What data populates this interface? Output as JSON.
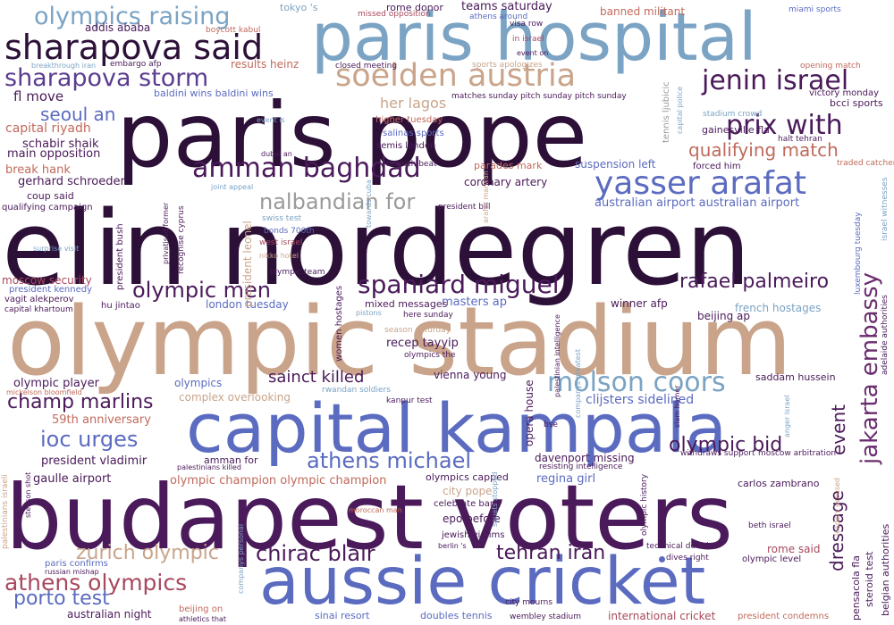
{
  "palette": {
    "dark_purple": "#2d1038",
    "deep_purple": "#4a1a5a",
    "purple": "#6a2c6e",
    "indigo": "#5b3d8f",
    "blue": "#5b6bc0",
    "light_blue": "#7ba3c4",
    "tan": "#c9a48a",
    "rose": "#a8485e",
    "brick": "#c06a5c",
    "gray": "#9a9a9a"
  },
  "words": [
    {
      "text": "elin nordegren",
      "color": "#2d1038"
    },
    {
      "text": "olympic stadium",
      "color": "#c9a48a"
    },
    {
      "text": "budapest voters",
      "color": "#4a1a5a"
    },
    {
      "text": "paris pope",
      "color": "#2d1038"
    },
    {
      "text": "paris hospital",
      "color": "#7ba3c4"
    },
    {
      "text": "capital kampala",
      "color": "#5b6bc0"
    },
    {
      "text": "aussie cricket",
      "color": "#5b6bc0"
    },
    {
      "text": "sharapova said",
      "color": "#2d1038"
    },
    {
      "text": "olympics raising",
      "color": "#7ba3c4"
    },
    {
      "text": "sharapova storm",
      "color": "#5b3d8f"
    },
    {
      "text": "soelden austria",
      "color": "#c9a48a"
    },
    {
      "text": "jenin israel",
      "color": "#4a1a5a"
    },
    {
      "text": "amman baghdad",
      "color": "#4a1a5a"
    },
    {
      "text": "yasser arafat",
      "color": "#5b6bc0"
    },
    {
      "text": "prix with",
      "color": "#4a1a5a"
    },
    {
      "text": "qualifying match",
      "color": "#c06a5c"
    },
    {
      "text": "nalbandian for",
      "color": "#9a9a9a"
    },
    {
      "text": "spaniard miguel",
      "color": "#4a1a5a"
    },
    {
      "text": "olympic men",
      "color": "#4a1a5a"
    },
    {
      "text": "rafael palmeiro",
      "color": "#4a1a5a"
    },
    {
      "text": "jakarta embassy",
      "color": "#6a2c6e"
    },
    {
      "text": "molson coors",
      "color": "#7ba3c4"
    },
    {
      "text": "sainct killed",
      "color": "#4a1a5a"
    },
    {
      "text": "champ marlins",
      "color": "#4a1a5a"
    },
    {
      "text": "ioc urges",
      "color": "#5b6bc0"
    },
    {
      "text": "athens michael",
      "color": "#5b6bc0"
    },
    {
      "text": "olympic bid",
      "color": "#4a1a5a"
    },
    {
      "text": "event",
      "color": "#4a1a5a"
    },
    {
      "text": "dressage",
      "color": "#4a1a5a"
    },
    {
      "text": "chirac blair",
      "color": "#4a1a5a"
    },
    {
      "text": "tehran iran",
      "color": "#4a1a5a"
    },
    {
      "text": "zurich olympic",
      "color": "#c9a48a"
    },
    {
      "text": "athens olympics",
      "color": "#a8485e"
    },
    {
      "text": "porto test",
      "color": "#5b6bc0"
    },
    {
      "text": "seoul an",
      "color": "#5b6bc0"
    },
    {
      "text": "her lagos",
      "color": "#c9a48a"
    },
    {
      "text": "capital riyadh",
      "color": "#c06a5c"
    },
    {
      "text": "fl move",
      "color": "#4a1a5a"
    },
    {
      "text": "main opposition",
      "color": "#4a1a5a"
    },
    {
      "text": "schabir shaik",
      "color": "#4a1a5a"
    },
    {
      "text": "break hank",
      "color": "#c06a5c"
    },
    {
      "text": "gerhard schroeder",
      "color": "#4a1a5a"
    },
    {
      "text": "coup said",
      "color": "#4a1a5a"
    },
    {
      "text": "qualifying campaign",
      "color": "#4a1a5a"
    },
    {
      "text": "moscow security",
      "color": "#a8485e"
    },
    {
      "text": "president kennedy",
      "color": "#5b6bc0"
    },
    {
      "text": "vagit alekperov",
      "color": "#4a1a5a"
    },
    {
      "text": "capital khartoum",
      "color": "#4a1a5a"
    },
    {
      "text": "hu jintao",
      "color": "#4a1a5a"
    },
    {
      "text": "london tuesday",
      "color": "#5b6bc0"
    },
    {
      "text": "masters ap",
      "color": "#5b6bc0"
    },
    {
      "text": "mixed messages",
      "color": "#4a1a5a"
    },
    {
      "text": "recep tayyip",
      "color": "#4a1a5a"
    },
    {
      "text": "olympic player",
      "color": "#4a1a5a"
    },
    {
      "text": "olympics",
      "color": "#5b6bc0"
    },
    {
      "text": "complex overlooking",
      "color": "#c9a48a"
    },
    {
      "text": "59th anniversary",
      "color": "#c06a5c"
    },
    {
      "text": "president vladimir",
      "color": "#4a1a5a"
    },
    {
      "text": "gaulle airport",
      "color": "#4a1a5a"
    },
    {
      "text": "olympic champion olympic champion",
      "color": "#c06a5c"
    },
    {
      "text": "city pope",
      "color": "#c9a48a"
    },
    {
      "text": "olympics capped",
      "color": "#4a1a5a"
    },
    {
      "text": "celebrate barry",
      "color": "#4a1a5a"
    },
    {
      "text": "epo before",
      "color": "#4a1a5a"
    },
    {
      "text": "jewish victims",
      "color": "#4a1a5a"
    },
    {
      "text": "vienna young",
      "color": "#4a1a5a"
    },
    {
      "text": "clijsters sidelined",
      "color": "#5b6bc0"
    },
    {
      "text": "davenport missing",
      "color": "#4a1a5a"
    },
    {
      "text": "regina girl",
      "color": "#5b6bc0"
    },
    {
      "text": "carlos zambrano",
      "color": "#4a1a5a"
    },
    {
      "text": "saddam hussein",
      "color": "#4a1a5a"
    },
    {
      "text": "french hostages",
      "color": "#7ba3c4"
    },
    {
      "text": "beijing ap",
      "color": "#4a1a5a"
    },
    {
      "text": "winner afp",
      "color": "#4a1a5a"
    },
    {
      "text": "australian airport australian airport",
      "color": "#5b6bc0"
    },
    {
      "text": "coronary artery",
      "color": "#4a1a5a"
    },
    {
      "text": "suspension left",
      "color": "#5b6bc0"
    },
    {
      "text": "forced him",
      "color": "#4a1a5a"
    },
    {
      "text": "gainesville fla",
      "color": "#4a1a5a"
    },
    {
      "text": "victory monday",
      "color": "#4a1a5a"
    },
    {
      "text": "bcci sports",
      "color": "#4a1a5a"
    },
    {
      "text": "tokyo 's",
      "color": "#7ba3c4"
    },
    {
      "text": "rome donor",
      "color": "#4a1a5a"
    },
    {
      "text": "teams saturday",
      "color": "#4a1a5a"
    },
    {
      "text": "banned militant",
      "color": "#c06a5c"
    },
    {
      "text": "miami sports",
      "color": "#5b6bc0"
    },
    {
      "text": "addis ababa",
      "color": "#4a1a5a"
    },
    {
      "text": "boycott kabul",
      "color": "#c06a5c"
    },
    {
      "text": "missed opposition",
      "color": "#a8485e"
    },
    {
      "text": "athens around",
      "color": "#5b6bc0"
    },
    {
      "text": "results heinz",
      "color": "#c06a5c"
    },
    {
      "text": "closed meeting",
      "color": "#4a1a5a"
    },
    {
      "text": "embargo afp",
      "color": "#4a1a5a"
    },
    {
      "text": "breakthrough iran",
      "color": "#7ba3c4"
    },
    {
      "text": "baldini wins baldini wins",
      "color": "#5b6bc0"
    },
    {
      "text": "matches sunday pitch sunday pitch sunday",
      "color": "#4a1a5a"
    },
    {
      "text": "higher tuesday",
      "color": "#c06a5c"
    },
    {
      "text": "salinas sports",
      "color": "#5b6bc0"
    },
    {
      "text": "semis london",
      "color": "#4a1a5a"
    },
    {
      "text": "parades mark",
      "color": "#c06a5c"
    },
    {
      "text": "munich beat",
      "color": "#4a1a5a"
    },
    {
      "text": "traded catcher",
      "color": "#c06a5c"
    },
    {
      "text": "halt tehran",
      "color": "#4a1a5a"
    },
    {
      "text": "stadium crowd",
      "color": "#7ba3c4"
    },
    {
      "text": "opening match",
      "color": "#c06a5c"
    },
    {
      "text": "sports apologizes",
      "color": "#c9a48a"
    },
    {
      "text": "in israel",
      "color": "#a8485e"
    },
    {
      "text": "event on",
      "color": "#4a1a5a"
    },
    {
      "text": "visa row",
      "color": "#4a1a5a"
    },
    {
      "text": "swiss test",
      "color": "#7ba3c4"
    },
    {
      "text": "west israel",
      "color": "#a8485e"
    },
    {
      "text": "nikko hotel",
      "color": "#c9a48a"
    },
    {
      "text": "bonds 700th",
      "color": "#5b6bc0"
    },
    {
      "text": "olympic team",
      "color": "#4a1a5a"
    },
    {
      "text": "president bill",
      "color": "#4a1a5a"
    },
    {
      "text": "dubai an",
      "color": "#4a1a5a"
    },
    {
      "text": "joint appeal",
      "color": "#7ba3c4"
    },
    {
      "text": "event is",
      "color": "#7ba3c4"
    },
    {
      "text": "surprise visit",
      "color": "#7ba3c4"
    },
    {
      "text": "here sunday",
      "color": "#4a1a5a"
    },
    {
      "text": "pistons",
      "color": "#7ba3c4"
    },
    {
      "text": "olympics the",
      "color": "#4a1a5a"
    },
    {
      "text": "season saturday",
      "color": "#c9a48a"
    },
    {
      "text": "mickelson bloomfield",
      "color": "#c06a5c"
    },
    {
      "text": "rwandan soldiers",
      "color": "#7ba3c4"
    },
    {
      "text": "kanpur test",
      "color": "#4a1a5a"
    },
    {
      "text": "amman for",
      "color": "#4a1a5a"
    },
    {
      "text": "palestinians killed",
      "color": "#4a1a5a"
    },
    {
      "text": "moroccan man",
      "color": "#c06a5c"
    },
    {
      "text": "paris confirms",
      "color": "#5b6bc0"
    },
    {
      "text": "russian mishap",
      "color": "#4a1a5a"
    },
    {
      "text": "berlin 's",
      "color": "#4a1a5a"
    },
    {
      "text": "australian night",
      "color": "#4a1a5a"
    },
    {
      "text": "beijing on",
      "color": "#c06a5c"
    },
    {
      "text": "athletics that",
      "color": "#4a1a5a"
    },
    {
      "text": "city mourns",
      "color": "#4a1a5a"
    },
    {
      "text": "wembley stadium",
      "color": "#4a1a5a"
    },
    {
      "text": "sinai resort",
      "color": "#5b6bc0"
    },
    {
      "text": "doubles tennis",
      "color": "#5b6bc0"
    },
    {
      "text": "international cricket",
      "color": "#a8485e"
    },
    {
      "text": "president condemns",
      "color": "#c06a5c"
    },
    {
      "text": "rome said",
      "color": "#a8485e"
    },
    {
      "text": "olympic level",
      "color": "#4a1a5a"
    },
    {
      "text": "dives right",
      "color": "#4a1a5a"
    },
    {
      "text": "technical decision",
      "color": "#4a1a5a"
    },
    {
      "text": "beth israel",
      "color": "#4a1a5a"
    },
    {
      "text": "resisting intelligence",
      "color": "#4a1a5a"
    },
    {
      "text": "withdraws support",
      "color": "#4a1a5a"
    },
    {
      "text": "moscow arbitration",
      "color": "#4a1a5a"
    },
    {
      "text": "bse",
      "color": "#4a1a5a"
    },
    {
      "text": "palestinians israeli",
      "color": "#c9a48a"
    },
    {
      "text": "stenson shot",
      "color": "#4a1a5a"
    },
    {
      "text": "companys personal",
      "color": "#7ba3c4"
    },
    {
      "text": "squats stopped",
      "color": "#7ba3c4"
    },
    {
      "text": "opera house",
      "color": "#4a1a5a"
    },
    {
      "text": "olympic history",
      "color": "#4a1a5a"
    },
    {
      "text": "slam homer",
      "color": "#4a1a5a"
    },
    {
      "text": "steroid test",
      "color": "#4a1a5a"
    },
    {
      "text": "pensacola fla",
      "color": "#4a1a5a"
    },
    {
      "text": "belgian authorities",
      "color": "#4a1a5a"
    },
    {
      "text": "adelaide authorities",
      "color": "#4a1a5a"
    },
    {
      "text": "israel witnesses",
      "color": "#7ba3c4"
    },
    {
      "text": "luxembourg tuesday",
      "color": "#5b6bc0"
    },
    {
      "text": "tennis ljubicic",
      "color": "#9a9a9a"
    },
    {
      "text": "capital police",
      "color": "#7ba3c4"
    },
    {
      "text": "privatised former",
      "color": "#4a1a5a"
    },
    {
      "text": "recognise cyprus",
      "color": "#4a1a5a"
    },
    {
      "text": "president bush",
      "color": "#4a1a5a"
    },
    {
      "text": "president leonel",
      "color": "#c9a48a"
    },
    {
      "text": "women hostages",
      "color": "#4a1a5a"
    },
    {
      "text": "towards cuba",
      "color": "#7ba3c4"
    },
    {
      "text": "companys greatest",
      "color": "#7ba3c4"
    },
    {
      "text": "palestinian intelligence",
      "color": "#4a1a5a"
    },
    {
      "text": "arafat marwan",
      "color": "#c9a48a"
    },
    {
      "text": "anger israel",
      "color": "#7ba3c4"
    },
    {
      "text": "leaders accused",
      "color": "#c9a48a"
    }
  ]
}
